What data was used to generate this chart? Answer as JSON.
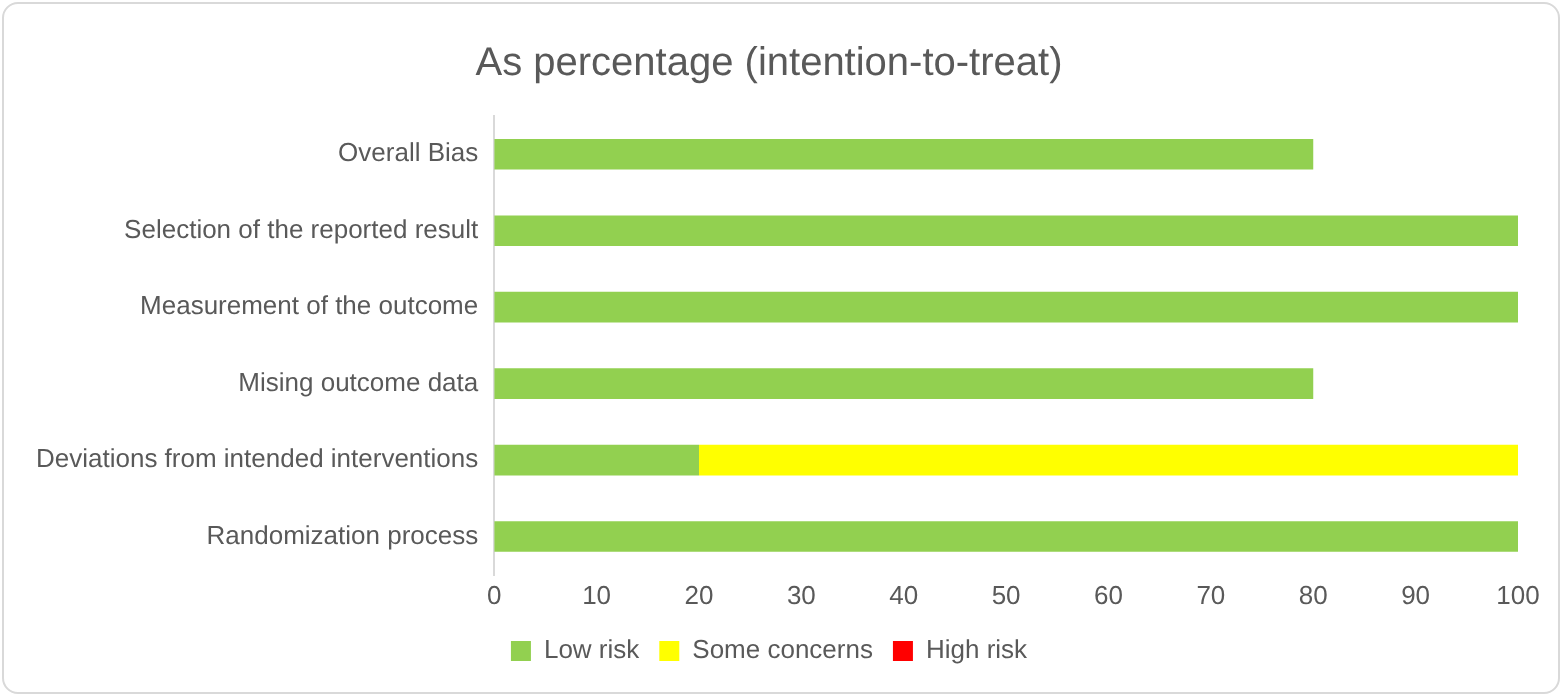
{
  "chart_data": {
    "type": "bar",
    "orientation": "horizontal",
    "stacked": true,
    "title": "As percentage (intention-to-treat)",
    "categories": [
      "Overall Bias",
      "Selection of the reported result",
      "Measurement of the outcome",
      "Mising outcome data",
      "Deviations from intended interventions",
      "Randomization process"
    ],
    "series": [
      {
        "name": "Low risk",
        "color": "#92d050",
        "values": [
          80,
          100,
          100,
          80,
          20,
          100
        ]
      },
      {
        "name": "Some concerns",
        "color": "#ffff00",
        "values": [
          0,
          0,
          0,
          0,
          80,
          0
        ]
      },
      {
        "name": "High risk",
        "color": "#ff0000",
        "values": [
          0,
          0,
          0,
          0,
          0,
          0
        ]
      }
    ],
    "xlim": [
      0,
      100
    ],
    "xticks": [
      0,
      10,
      20,
      30,
      40,
      50,
      60,
      70,
      80,
      90,
      100
    ],
    "grid": false,
    "legend": "bottom"
  }
}
